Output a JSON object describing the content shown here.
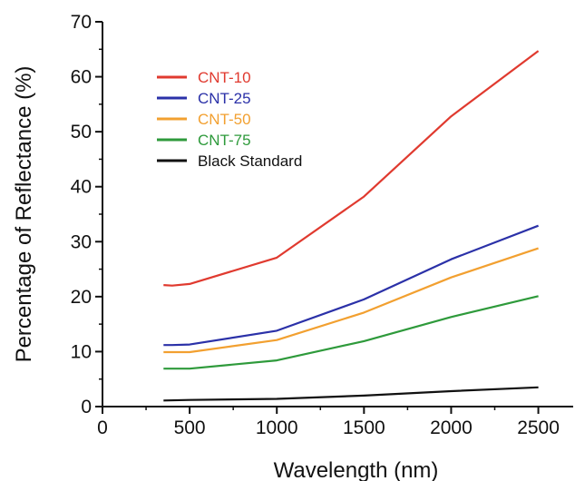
{
  "chart_data": {
    "type": "line",
    "title": "",
    "xlabel": "Wavelength (nm)",
    "ylabel": "Percentage of Reflectance (%)",
    "xlim": [
      0,
      2700
    ],
    "ylim": [
      0,
      70
    ],
    "xticks": [
      0,
      500,
      1000,
      1500,
      2000,
      2500
    ],
    "yticks": [
      0,
      10,
      20,
      30,
      40,
      50,
      60,
      70
    ],
    "grid": false,
    "legend_position": "upper-left",
    "series": [
      {
        "name": "CNT-10",
        "color": "#e03a2f",
        "x": [
          350,
          400,
          500,
          1000,
          1500,
          2000,
          2500
        ],
        "y": [
          22.1,
          22.0,
          22.3,
          27.1,
          38.2,
          52.8,
          64.7
        ]
      },
      {
        "name": "CNT-25",
        "color": "#2b31a8",
        "x": [
          350,
          400,
          500,
          1000,
          1500,
          2000,
          2500
        ],
        "y": [
          11.2,
          11.2,
          11.3,
          13.8,
          19.5,
          26.8,
          32.9
        ]
      },
      {
        "name": "CNT-50",
        "color": "#f2a030",
        "x": [
          350,
          400,
          500,
          1000,
          1500,
          2000,
          2500
        ],
        "y": [
          9.9,
          9.9,
          9.9,
          12.1,
          17.1,
          23.5,
          28.8
        ]
      },
      {
        "name": "CNT-75",
        "color": "#2e9a3b",
        "x": [
          350,
          400,
          500,
          1000,
          1500,
          2000,
          2500
        ],
        "y": [
          6.9,
          6.9,
          6.9,
          8.4,
          11.9,
          16.3,
          20.1
        ]
      },
      {
        "name": "Black Standard",
        "color": "#111111",
        "x": [
          350,
          500,
          1000,
          1500,
          2000,
          2500
        ],
        "y": [
          1.1,
          1.2,
          1.4,
          2.0,
          2.8,
          3.5
        ]
      }
    ]
  }
}
